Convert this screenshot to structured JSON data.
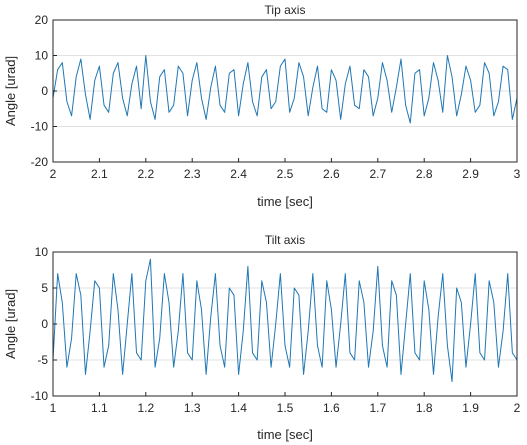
{
  "colors": {
    "line": "#1f77b4",
    "axes": "#262626",
    "grid": "#e2e2e2",
    "background": "#ffffff"
  },
  "chart_data": [
    {
      "type": "line",
      "title": "Tip axis",
      "xlabel": "time [sec]",
      "ylabel": "Angle [urad]",
      "xlim": [
        2,
        3
      ],
      "ylim": [
        -20,
        20
      ],
      "xticks": [
        2,
        2.1,
        2.2,
        2.3,
        2.4,
        2.5,
        2.6,
        2.7,
        2.8,
        2.9,
        3
      ],
      "xtick_labels": [
        "2",
        "2.1",
        "2.2",
        "2.3",
        "2.4",
        "2.5",
        "2.6",
        "2.7",
        "2.8",
        "2.9",
        "3"
      ],
      "yticks": [
        -20,
        -10,
        0,
        10,
        20
      ],
      "ytick_labels": [
        "-20",
        "-10",
        "0",
        "10",
        "20"
      ],
      "grid": true,
      "series": [
        {
          "color": "#1f77b4",
          "x": [
            2.0,
            2.01,
            2.02,
            2.03,
            2.04,
            2.05,
            2.06,
            2.07,
            2.08,
            2.09,
            2.1,
            2.11,
            2.12,
            2.13,
            2.14,
            2.15,
            2.16,
            2.17,
            2.18,
            2.19,
            2.2,
            2.21,
            2.22,
            2.23,
            2.24,
            2.25,
            2.26,
            2.27,
            2.28,
            2.29,
            2.3,
            2.31,
            2.32,
            2.33,
            2.34,
            2.35,
            2.36,
            2.37,
            2.38,
            2.39,
            2.4,
            2.41,
            2.42,
            2.43,
            2.44,
            2.45,
            2.46,
            2.47,
            2.48,
            2.49,
            2.5,
            2.51,
            2.52,
            2.53,
            2.54,
            2.55,
            2.56,
            2.57,
            2.58,
            2.59,
            2.6,
            2.61,
            2.62,
            2.63,
            2.64,
            2.65,
            2.66,
            2.67,
            2.68,
            2.69,
            2.7,
            2.71,
            2.72,
            2.73,
            2.74,
            2.75,
            2.76,
            2.77,
            2.78,
            2.79,
            2.8,
            2.81,
            2.82,
            2.83,
            2.84,
            2.85,
            2.86,
            2.87,
            2.88,
            2.89,
            2.9,
            2.91,
            2.92,
            2.93,
            2.94,
            2.95,
            2.96,
            2.97,
            2.98,
            2.99,
            3.0
          ],
          "y": [
            -2,
            6,
            8,
            -3,
            -7,
            4,
            9,
            -1,
            -8,
            3,
            7,
            -4,
            -6,
            5,
            8,
            -2,
            -7,
            2,
            7,
            -5,
            10,
            -3,
            -8,
            4,
            6,
            -6,
            -4,
            7,
            5,
            -7,
            3,
            8,
            -2,
            -8,
            1,
            7,
            -4,
            -6,
            5,
            6,
            -7,
            2,
            8,
            -3,
            -7,
            4,
            6,
            -5,
            -3,
            7,
            9,
            -6,
            -2,
            8,
            4,
            -7,
            1,
            7,
            -5,
            -6,
            6,
            3,
            -8,
            2,
            7,
            -4,
            -5,
            6,
            4,
            -7,
            -2,
            8,
            3,
            -6,
            1,
            9,
            -4,
            -9,
            5,
            6,
            -7,
            -2,
            8,
            3,
            -6,
            10,
            4,
            -7,
            -1,
            7,
            3,
            -6,
            -4,
            8,
            5,
            -7,
            -3,
            7,
            6,
            -8,
            -2
          ]
        }
      ]
    },
    {
      "type": "line",
      "title": "Tilt axis",
      "xlabel": "time [sec]",
      "ylabel": "Angle [urad]",
      "xlim": [
        1,
        2
      ],
      "ylim": [
        -10,
        10
      ],
      "xticks": [
        1,
        1.1,
        1.2,
        1.3,
        1.4,
        1.5,
        1.6,
        1.7,
        1.8,
        1.9,
        2
      ],
      "xtick_labels": [
        "1",
        "1.1",
        "1.2",
        "1.3",
        "1.4",
        "1.5",
        "1.6",
        "1.7",
        "1.8",
        "1.9",
        "2"
      ],
      "yticks": [
        -10,
        -5,
        0,
        5,
        10
      ],
      "ytick_labels": [
        "-10",
        "-5",
        "0",
        "5",
        "10"
      ],
      "grid": true,
      "series": [
        {
          "color": "#1f77b4",
          "x": [
            1.0,
            1.01,
            1.02,
            1.03,
            1.04,
            1.05,
            1.06,
            1.07,
            1.08,
            1.09,
            1.1,
            1.11,
            1.12,
            1.13,
            1.14,
            1.15,
            1.16,
            1.17,
            1.18,
            1.19,
            1.2,
            1.21,
            1.22,
            1.23,
            1.24,
            1.25,
            1.26,
            1.27,
            1.28,
            1.29,
            1.3,
            1.31,
            1.32,
            1.33,
            1.34,
            1.35,
            1.36,
            1.37,
            1.38,
            1.39,
            1.4,
            1.41,
            1.42,
            1.43,
            1.44,
            1.45,
            1.46,
            1.47,
            1.48,
            1.49,
            1.5,
            1.51,
            1.52,
            1.53,
            1.54,
            1.55,
            1.56,
            1.57,
            1.58,
            1.59,
            1.6,
            1.61,
            1.62,
            1.63,
            1.64,
            1.65,
            1.66,
            1.67,
            1.68,
            1.69,
            1.7,
            1.71,
            1.72,
            1.73,
            1.74,
            1.75,
            1.76,
            1.77,
            1.78,
            1.79,
            1.8,
            1.81,
            1.82,
            1.83,
            1.84,
            1.85,
            1.86,
            1.87,
            1.88,
            1.89,
            1.9,
            1.91,
            1.92,
            1.93,
            1.94,
            1.95,
            1.96,
            1.97,
            1.98,
            1.99,
            2.0
          ],
          "y": [
            -5,
            7,
            3,
            -6,
            -2,
            7,
            4,
            -7,
            -1,
            6,
            5,
            -6,
            -3,
            7,
            2,
            -7,
            0,
            7,
            -4,
            -5,
            6,
            9,
            -6,
            -2,
            7,
            3,
            -6,
            -1,
            7,
            -4,
            -5,
            6,
            2,
            -7,
            1,
            7,
            -3,
            -6,
            5,
            4,
            -7,
            -1,
            8,
            -4,
            -5,
            6,
            3,
            -6,
            0,
            7,
            -3,
            -6,
            5,
            4,
            -7,
            -1,
            7,
            -3,
            -6,
            6,
            2,
            -6,
            0,
            7,
            -4,
            -5,
            6,
            3,
            -6,
            -1,
            8,
            -3,
            -6,
            6,
            4,
            -7,
            0,
            7,
            -4,
            -5,
            6,
            2,
            -7,
            1,
            7,
            -3,
            -8,
            5,
            3,
            -6,
            0,
            7,
            -4,
            -5,
            6,
            3,
            -6,
            -1,
            7,
            -4,
            -5
          ]
        }
      ]
    }
  ]
}
